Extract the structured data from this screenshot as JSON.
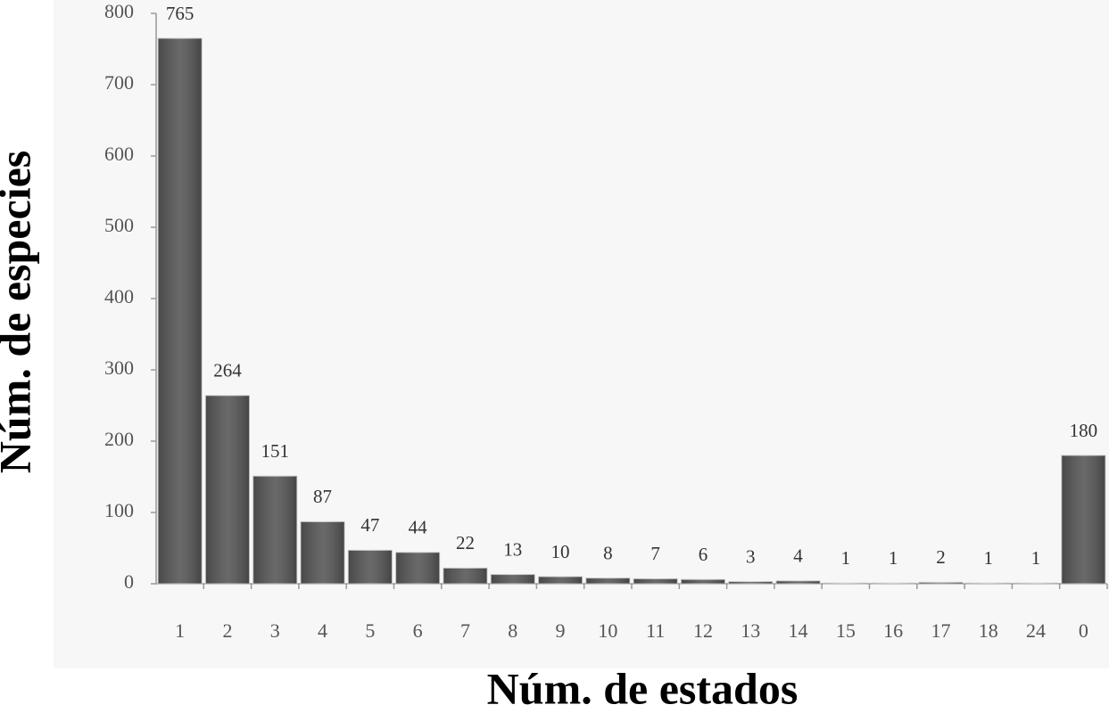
{
  "chart_data": {
    "type": "bar",
    "x_label": "Núm. de estados",
    "y_label": "Núm. de especies",
    "categories": [
      "1",
      "2",
      "3",
      "4",
      "5",
      "6",
      "7",
      "8",
      "9",
      "10",
      "11",
      "12",
      "13",
      "14",
      "15",
      "16",
      "17",
      "18",
      "24",
      "0"
    ],
    "values": [
      765,
      264,
      151,
      87,
      47,
      44,
      22,
      13,
      10,
      8,
      7,
      6,
      3,
      4,
      1,
      1,
      2,
      1,
      1,
      180
    ],
    "color": "#555555",
    "ylim": [
      0,
      800
    ],
    "yticks": [
      0,
      100,
      200,
      300,
      400,
      500,
      600,
      700,
      800
    ]
  }
}
